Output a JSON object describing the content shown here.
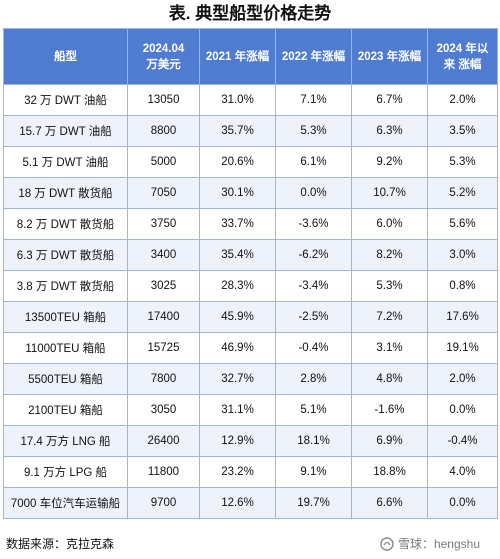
{
  "title": "表. 典型船型价格走势",
  "table": {
    "headers": [
      "船型",
      "2024.04 万美元",
      "2021 年涨幅",
      "2022 年涨幅",
      "2023 年涨幅",
      "2024 年以来 涨幅"
    ],
    "rows": [
      [
        "32 万 DWT 油船",
        "13050",
        "31.0%",
        "7.1%",
        "6.7%",
        "2.0%"
      ],
      [
        "15.7 万 DWT 油船",
        "8800",
        "35.7%",
        "5.3%",
        "6.3%",
        "3.5%"
      ],
      [
        "5.1 万 DWT 油船",
        "5000",
        "20.6%",
        "6.1%",
        "9.2%",
        "5.3%"
      ],
      [
        "18 万 DWT 散货船",
        "7050",
        "30.1%",
        "0.0%",
        "10.7%",
        "5.2%"
      ],
      [
        "8.2 万 DWT 散货船",
        "3750",
        "33.7%",
        "-3.6%",
        "6.0%",
        "5.6%"
      ],
      [
        "6.3 万 DWT 散货船",
        "3400",
        "35.4%",
        "-6.2%",
        "8.2%",
        "3.0%"
      ],
      [
        "3.8 万 DWT 散货船",
        "3025",
        "28.3%",
        "-3.4%",
        "5.3%",
        "0.8%"
      ],
      [
        "13500TEU 箱船",
        "17400",
        "45.9%",
        "-2.5%",
        "7.2%",
        "17.6%"
      ],
      [
        "11000TEU 箱船",
        "15725",
        "46.9%",
        "-0.4%",
        "3.1%",
        "19.1%"
      ],
      [
        "5500TEU 箱船",
        "7800",
        "32.7%",
        "2.8%",
        "4.8%",
        "2.0%"
      ],
      [
        "2100TEU 箱船",
        "3050",
        "31.1%",
        "5.1%",
        "-1.6%",
        "0.0%"
      ],
      [
        "17.4 万方 LNG 船",
        "26400",
        "12.9%",
        "18.1%",
        "6.9%",
        "-0.4%"
      ],
      [
        "9.1 万方 LPG 船",
        "11800",
        "23.2%",
        "9.1%",
        "18.8%",
        "4.0%"
      ],
      [
        "7000 车位汽车运输船",
        "9700",
        "12.6%",
        "19.7%",
        "6.6%",
        "0.0%"
      ]
    ]
  },
  "source": "数据来源：克拉克森",
  "watermark": {
    "icon": "snowball-icon",
    "text": "雪球：hengshu"
  },
  "colors": {
    "header_bg": "#4f7bd0",
    "header_text": "#ffffff",
    "stripe_bg": "#eef3fb",
    "border": "#9fb6d7"
  }
}
